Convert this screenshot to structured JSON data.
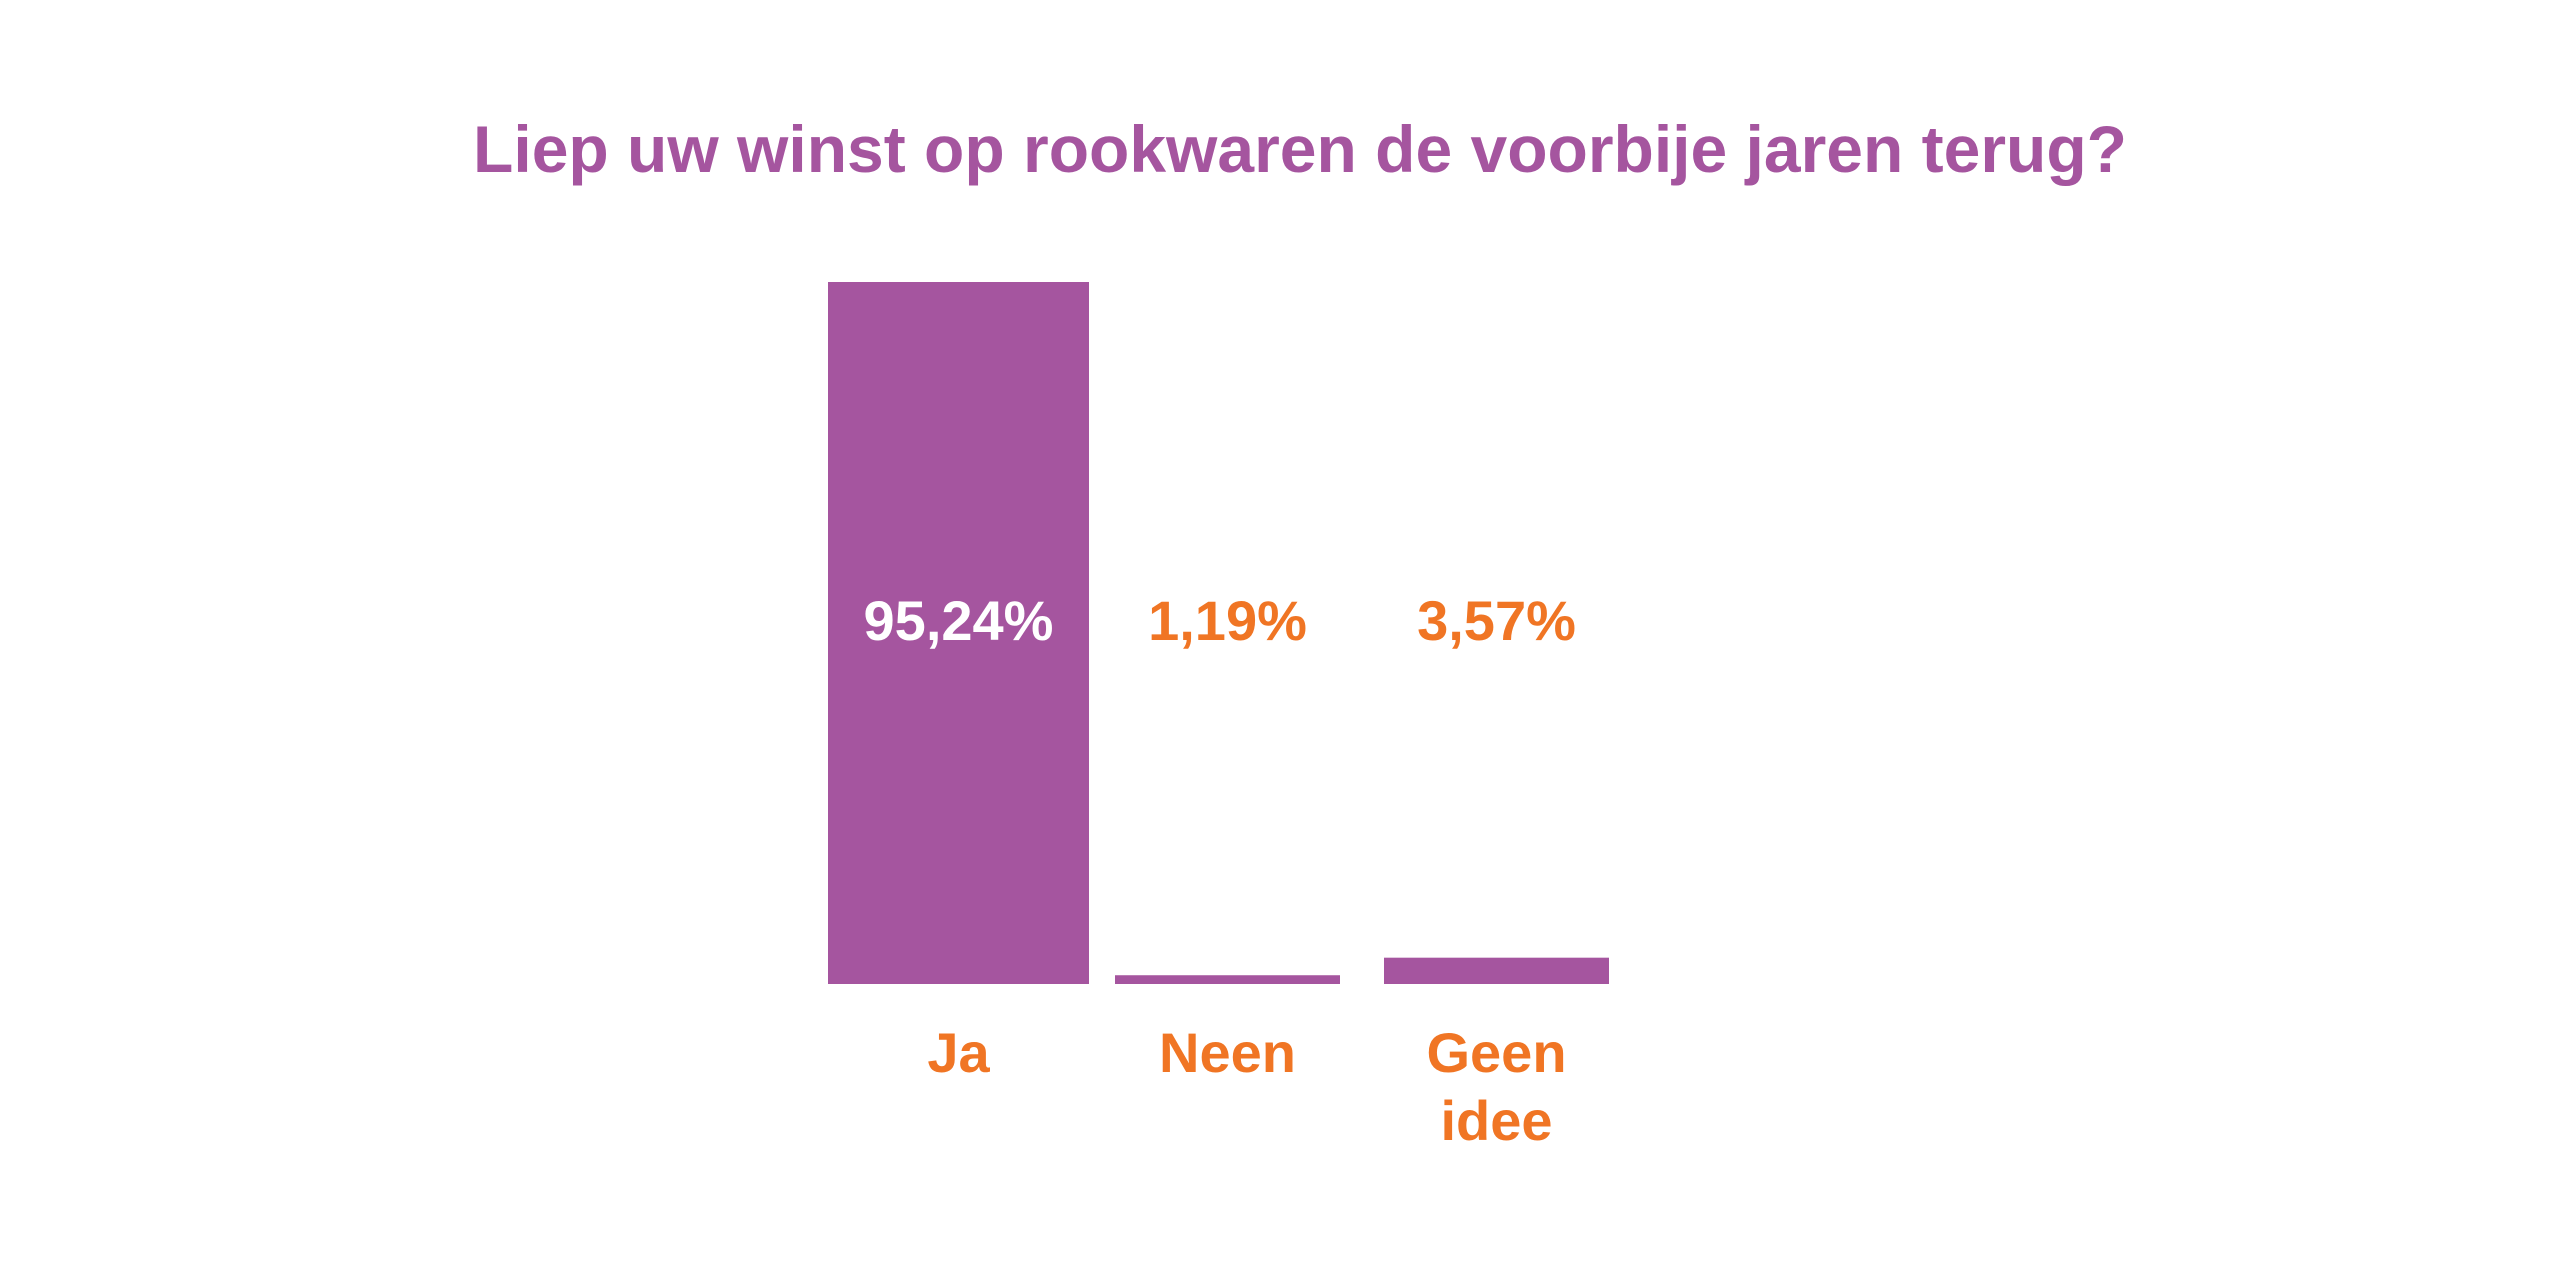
{
  "colors": {
    "bar": "#A5559F",
    "title": "#A5559F",
    "label": "#F07524",
    "value_inside": "#FFFFFF",
    "background": "#FFFFFF"
  },
  "chart_data": {
    "type": "bar",
    "title": "Liep uw winst op rookwaren de voorbije jaren terug?",
    "xlabel": "",
    "ylabel": "",
    "ylim": [
      0,
      95.24
    ],
    "grid": false,
    "legend": "none",
    "categories": [
      [
        "Ja"
      ],
      [
        "Neen"
      ],
      [
        "Geen",
        "idee"
      ]
    ],
    "values": [
      95.24,
      1.19,
      3.57
    ],
    "value_labels": [
      "95,24%",
      "1,19%",
      "3,57%"
    ]
  }
}
